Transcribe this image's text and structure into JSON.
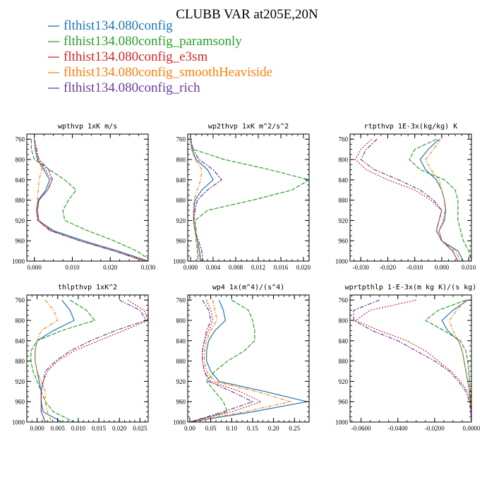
{
  "title": "CLUBB VAR at205E,20N",
  "legend": [
    {
      "name": "flthist134.080config",
      "color": "#1f77b4"
    },
    {
      "name": "flthist134.080config_paramsonly",
      "color": "#2ca02c"
    },
    {
      "name": "flthist134.080config_e3sm",
      "color": "#d62728"
    },
    {
      "name": "flthist134.080config_smoothHeaviside",
      "color": "#ff7f0e"
    },
    {
      "name": "flthist134.080config_rich",
      "color": "#6a3d9a"
    }
  ],
  "chart_data": [
    {
      "type": "line",
      "title": "wpthvp  1xK m/s",
      "xlim": [
        -0.002,
        0.03
      ],
      "ylim": [
        1000,
        750
      ],
      "xticks": [
        0.0,
        0.01,
        0.02,
        0.03
      ],
      "xtick_labels": [
        "0.000",
        "0.010",
        "0.020",
        "0.030"
      ],
      "yticks": [
        760,
        800,
        840,
        880,
        920,
        960,
        1000
      ],
      "pressure": [
        760,
        780,
        800,
        820,
        840,
        860,
        880,
        900,
        920,
        940,
        960,
        980,
        1000
      ],
      "series": [
        {
          "name": "flthist134.080config",
          "values": [
            0.0,
            0.0002,
            0.0008,
            0.0025,
            0.004,
            0.003,
            0.001,
            0.0005,
            0.001,
            0.005,
            0.013,
            0.022,
            0.03
          ]
        },
        {
          "name": "flthist134.080config_paramsonly",
          "values": [
            -0.0008,
            -0.0008,
            0.0,
            0.004,
            0.008,
            0.011,
            0.009,
            0.0075,
            0.008,
            0.014,
            0.021,
            0.027,
            0.031
          ]
        },
        {
          "name": "flthist134.080config_e3sm",
          "values": [
            0.0,
            0.0005,
            0.001,
            0.003,
            0.0045,
            0.0035,
            0.0012,
            0.0008,
            0.0012,
            0.0045,
            0.012,
            0.021,
            0.03
          ]
        },
        {
          "name": "flthist134.080config_smoothHeaviside",
          "values": [
            0.0,
            0.0003,
            0.001,
            0.002,
            0.0012,
            0.001,
            0.0008,
            0.0005,
            0.0008,
            0.004,
            0.012,
            0.021,
            0.029
          ]
        },
        {
          "name": "flthist134.080config_rich",
          "values": [
            0.0,
            0.0006,
            0.0012,
            0.0038,
            0.0048,
            0.0035,
            0.0012,
            0.0008,
            0.001,
            0.0042,
            0.012,
            0.021,
            0.029
          ]
        }
      ]
    },
    {
      "type": "line",
      "title": "wp2thvp  1xK m^2/s^2",
      "xlim": [
        -0.0005,
        0.021
      ],
      "ylim": [
        1000,
        750
      ],
      "xticks": [
        0.0,
        0.004,
        0.008,
        0.012,
        0.016,
        0.02
      ],
      "xtick_labels": [
        "0.000",
        "0.004",
        "0.008",
        "0.012",
        "0.016",
        "0.020"
      ],
      "yticks": [
        760,
        800,
        840,
        880,
        920,
        960,
        1000
      ],
      "pressure": [
        760,
        780,
        800,
        820,
        840,
        860,
        880,
        900,
        920,
        940,
        960,
        980,
        1000
      ],
      "series": [
        {
          "name": "flthist134.080config",
          "values": [
            0.0,
            0.0002,
            0.001,
            0.003,
            0.004,
            0.002,
            0.0008,
            0.0006,
            0.0005,
            0.0008,
            0.0012,
            0.0016,
            0.0018
          ]
        },
        {
          "name": "flthist134.080config_paramsonly",
          "values": [
            0.0,
            0.0005,
            0.006,
            0.014,
            0.021,
            0.018,
            0.011,
            0.003,
            0.0008,
            0.001,
            0.001,
            0.0012,
            0.0013
          ]
        },
        {
          "name": "flthist134.080config_e3sm",
          "values": [
            0.0,
            0.0004,
            0.0015,
            0.004,
            0.0055,
            0.003,
            0.0012,
            0.0008,
            0.0006,
            0.0008,
            0.0014,
            0.002,
            0.0022
          ]
        },
        {
          "name": "flthist134.080config_smoothHeaviside",
          "values": [
            0.0,
            0.0002,
            0.0008,
            0.002,
            0.0018,
            0.0012,
            0.0006,
            0.0005,
            0.0005,
            0.0008,
            0.001,
            0.0014,
            0.0016
          ]
        },
        {
          "name": "flthist134.080config_rich",
          "values": [
            0.0,
            0.0004,
            0.0015,
            0.004,
            0.0055,
            0.003,
            0.0012,
            0.0008,
            0.0006,
            0.0008,
            0.0014,
            0.002,
            0.0022
          ]
        }
      ]
    },
    {
      "type": "line",
      "title": "rtpthvp  1E-3x(kg/kg) K",
      "xlim": [
        -0.034,
        0.011
      ],
      "ylim": [
        1000,
        750
      ],
      "xticks": [
        -0.03,
        -0.02,
        -0.01,
        0.0,
        0.01
      ],
      "xtick_labels": [
        "-0.030",
        "-0.020",
        "-0.010",
        "0.000",
        "0.010"
      ],
      "yticks": [
        760,
        800,
        840,
        880,
        920,
        960,
        1000
      ],
      "pressure": [
        760,
        780,
        800,
        820,
        840,
        860,
        880,
        900,
        920,
        940,
        960,
        980,
        1000
      ],
      "series": [
        {
          "name": "flthist134.080config",
          "values": [
            -0.001,
            -0.005,
            -0.008,
            -0.006,
            -0.002,
            0.0,
            0.001,
            0.0015,
            0.001,
            -0.001,
            0.0,
            0.006,
            0.008
          ]
        },
        {
          "name": "flthist134.080config_paramsonly",
          "values": [
            -0.002,
            -0.01,
            -0.012,
            -0.008,
            0.001,
            0.005,
            0.006,
            0.006,
            0.006,
            0.007,
            0.008,
            0.01,
            0.011
          ]
        },
        {
          "name": "flthist134.080config_e3sm",
          "values": [
            -0.026,
            -0.03,
            -0.032,
            -0.028,
            -0.02,
            -0.01,
            -0.004,
            0.0,
            -0.001,
            -0.002,
            0.0,
            0.004,
            0.006
          ]
        },
        {
          "name": "flthist134.080config_smoothHeaviside",
          "values": [
            -0.0005,
            -0.003,
            -0.006,
            -0.004,
            -0.001,
            0.0,
            0.001,
            0.0012,
            0.0005,
            -0.001,
            0.0,
            0.005,
            0.007
          ]
        },
        {
          "name": "flthist134.080config_rich",
          "values": [
            -0.024,
            -0.028,
            -0.03,
            -0.025,
            -0.016,
            -0.008,
            -0.003,
            0.0,
            -0.001,
            -0.002,
            0.0,
            0.004,
            0.006
          ]
        }
      ]
    },
    {
      "type": "line",
      "title": "thlpthvp  1xK^2",
      "xlim": [
        -0.0025,
        0.027
      ],
      "ylim": [
        1000,
        750
      ],
      "xticks": [
        0.0,
        0.005,
        0.01,
        0.015,
        0.02,
        0.025
      ],
      "xtick_labels": [
        "0.000",
        "0.005",
        "0.010",
        "0.015",
        "0.020",
        "0.025"
      ],
      "yticks": [
        760,
        800,
        840,
        880,
        920,
        960,
        1000
      ],
      "pressure": [
        760,
        780,
        800,
        820,
        840,
        860,
        880,
        900,
        920,
        940,
        960,
        980,
        1000
      ],
      "series": [
        {
          "name": "flthist134.080config",
          "values": [
            0.006,
            0.008,
            0.009,
            0.004,
            0.0,
            -0.0005,
            -0.0005,
            0.0,
            0.0005,
            0.001,
            0.001,
            0.0015,
            0.006
          ]
        },
        {
          "name": "flthist134.080config_paramsonly",
          "values": [
            0.008,
            0.012,
            0.014,
            0.006,
            0.0,
            -0.0015,
            -0.0015,
            -0.001,
            0.0,
            0.001,
            0.002,
            0.004,
            0.009
          ]
        },
        {
          "name": "flthist134.080config_e3sm",
          "values": [
            0.022,
            0.026,
            0.027,
            0.021,
            0.015,
            0.009,
            0.005,
            0.0025,
            0.0015,
            0.001,
            0.001,
            0.001,
            0.002
          ]
        },
        {
          "name": "flthist134.080config_smoothHeaviside",
          "values": [
            0.002,
            0.004,
            0.005,
            0.001,
            0.0,
            -0.0005,
            -0.0005,
            0.0,
            0.001,
            0.002,
            0.002,
            0.0025,
            0.0035
          ]
        },
        {
          "name": "flthist134.080config_rich",
          "values": [
            0.02,
            0.025,
            0.0265,
            0.019,
            0.013,
            0.008,
            0.0045,
            0.002,
            0.0015,
            0.001,
            0.001,
            0.001,
            0.002
          ]
        }
      ]
    },
    {
      "type": "line",
      "title": "wp4  1x(m^4)/(s^4)",
      "xlim": [
        -0.005,
        0.285
      ],
      "ylim": [
        1000,
        750
      ],
      "xticks": [
        0.0,
        0.05,
        0.1,
        0.15,
        0.2,
        0.25
      ],
      "xtick_labels": [
        "0.00",
        "0.05",
        "0.10",
        "0.15",
        "0.20",
        "0.25"
      ],
      "yticks": [
        760,
        800,
        840,
        880,
        920,
        960,
        1000
      ],
      "pressure": [
        760,
        780,
        800,
        820,
        840,
        860,
        880,
        900,
        920,
        940,
        960,
        980,
        1000
      ],
      "series": [
        {
          "name": "flthist134.080config",
          "values": [
            0.07,
            0.08,
            0.085,
            0.06,
            0.045,
            0.04,
            0.04,
            0.05,
            0.07,
            0.18,
            0.28,
            0.15,
            0.0
          ]
        },
        {
          "name": "flthist134.080config_paramsonly",
          "values": [
            0.1,
            0.14,
            0.15,
            0.155,
            0.155,
            0.13,
            0.09,
            0.06,
            0.04,
            0.06,
            0.08,
            0.09,
            0.0
          ]
        },
        {
          "name": "flthist134.080config_e3sm",
          "values": [
            0.04,
            0.05,
            0.055,
            0.045,
            0.035,
            0.03,
            0.03,
            0.035,
            0.05,
            0.12,
            0.17,
            0.1,
            0.0
          ]
        },
        {
          "name": "flthist134.080config_smoothHeaviside",
          "values": [
            0.055,
            0.06,
            0.065,
            0.05,
            0.04,
            0.035,
            0.035,
            0.04,
            0.06,
            0.16,
            0.24,
            0.13,
            0.0
          ]
        },
        {
          "name": "flthist134.080config_rich",
          "values": [
            0.03,
            0.045,
            0.05,
            0.04,
            0.035,
            0.03,
            0.03,
            0.035,
            0.045,
            0.1,
            0.15,
            0.08,
            0.0
          ]
        }
      ]
    },
    {
      "type": "line",
      "title": "wprtpthlp  1-E-3x(m kg K)/(s kg)",
      "xlim": [
        -0.066,
        0.0
      ],
      "ylim": [
        1000,
        750
      ],
      "xticks": [
        -0.06,
        -0.04,
        -0.02,
        0.0
      ],
      "xtick_labels": [
        "-0.0600",
        "-0.0400",
        "-0.0200",
        "0.0000"
      ],
      "yticks": [
        760,
        800,
        840,
        880,
        920,
        960,
        1000
      ],
      "pressure": [
        760,
        780,
        800,
        820,
        840,
        860,
        880,
        900,
        920,
        940,
        960,
        980,
        1000
      ],
      "series": [
        {
          "name": "flthist134.080config",
          "values": [
            -0.002,
            -0.01,
            -0.016,
            -0.013,
            -0.007,
            -0.005,
            -0.004,
            -0.003,
            -0.002,
            -0.001,
            -0.0005,
            -0.0002,
            0.0
          ]
        },
        {
          "name": "flthist134.080config_paramsonly",
          "values": [
            -0.003,
            -0.018,
            -0.025,
            -0.015,
            -0.006,
            -0.003,
            -0.002,
            -0.0015,
            -0.001,
            -0.0005,
            -0.0003,
            -0.0001,
            0.0
          ]
        },
        {
          "name": "flthist134.080config_e3sm",
          "values": [
            -0.03,
            -0.055,
            -0.063,
            -0.05,
            -0.035,
            -0.025,
            -0.018,
            -0.011,
            -0.006,
            -0.002,
            -0.0005,
            -0.0002,
            0.0
          ]
        },
        {
          "name": "flthist134.080config_smoothHeaviside",
          "values": [
            -0.003,
            -0.008,
            -0.012,
            -0.01,
            -0.007,
            -0.005,
            -0.004,
            -0.003,
            -0.002,
            -0.001,
            -0.0005,
            -0.0002,
            0.0
          ]
        },
        {
          "name": "flthist134.080config_rich",
          "values": [
            -0.05,
            -0.064,
            -0.064,
            -0.054,
            -0.04,
            -0.03,
            -0.02,
            -0.012,
            -0.007,
            -0.003,
            -0.001,
            -0.0003,
            0.0
          ]
        }
      ]
    }
  ]
}
